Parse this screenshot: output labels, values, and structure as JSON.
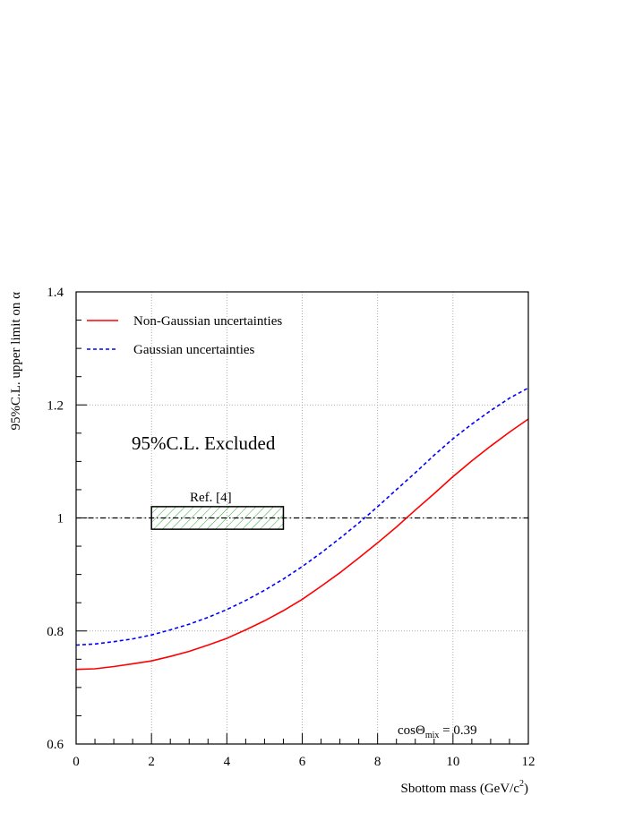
{
  "chart_data": {
    "type": "line",
    "title": "",
    "xlabel": "Sbottom mass (GeV/c",
    "xlabel_sup": "2",
    "xlabel_close": ")",
    "ylabel": "95%C.L. upper limit on α",
    "xlim": [
      0,
      12
    ],
    "ylim": [
      0.6,
      1.4
    ],
    "x_ticks": [
      "0",
      "2",
      "4",
      "6",
      "8",
      "10",
      "12"
    ],
    "y_ticks": [
      "0.6",
      "0.8",
      "1",
      "1.2",
      "1.4"
    ],
    "grid": true,
    "legend_position": "top-left",
    "series": [
      {
        "name": "Non-Gaussian uncertainties",
        "color": "#ff0000",
        "style": "solid",
        "x": [
          0,
          0.5,
          1,
          1.5,
          2,
          2.5,
          3,
          3.5,
          4,
          4.5,
          5,
          5.5,
          6,
          6.5,
          7,
          7.5,
          8,
          8.5,
          9,
          9.5,
          10,
          10.5,
          11,
          11.5,
          12
        ],
        "y": [
          0.732,
          0.733,
          0.737,
          0.742,
          0.747,
          0.755,
          0.764,
          0.775,
          0.787,
          0.802,
          0.818,
          0.836,
          0.856,
          0.879,
          0.903,
          0.929,
          0.956,
          0.984,
          1.014,
          1.043,
          1.073,
          1.101,
          1.127,
          1.152,
          1.175
        ]
      },
      {
        "name": "Gaussian uncertainties",
        "color": "#0000ff",
        "style": "dashed",
        "x": [
          0,
          0.5,
          1,
          1.5,
          2,
          2.5,
          3,
          3.5,
          4,
          4.5,
          5,
          5.5,
          6,
          6.5,
          7,
          7.5,
          8,
          8.5,
          9,
          9.5,
          10,
          10.5,
          11,
          11.5,
          12
        ],
        "y": [
          0.775,
          0.777,
          0.781,
          0.786,
          0.793,
          0.802,
          0.812,
          0.824,
          0.838,
          0.854,
          0.872,
          0.892,
          0.914,
          0.938,
          0.964,
          0.991,
          1.02,
          1.05,
          1.08,
          1.111,
          1.14,
          1.166,
          1.19,
          1.212,
          1.23
        ]
      }
    ],
    "reference_line": {
      "y": 1.0,
      "style": "dash-dot",
      "color": "#000000"
    },
    "annotations": {
      "excluded_label": "95%C.L. Excluded",
      "ref_label": "Ref. [4]",
      "ref_box": {
        "x_range": [
          2,
          5.5
        ],
        "y_range": [
          0.98,
          1.02
        ],
        "hatch_color": "#33aa33"
      },
      "cos_label_main": "cosΘ",
      "cos_label_sub": "mix",
      "cos_label_value": " = 0.39"
    }
  }
}
